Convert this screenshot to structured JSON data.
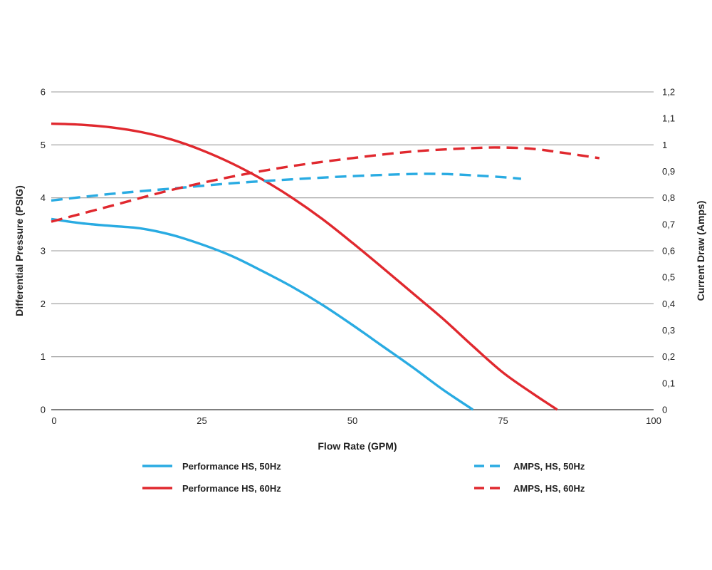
{
  "chart_data": {
    "type": "line",
    "xlabel": "Flow Rate (GPM)",
    "ylabel": "Differential Pressure (PSIG)",
    "y2label": "Current Draw (Amps)",
    "xlim": [
      0,
      100
    ],
    "ylim": [
      0,
      6
    ],
    "y2lim": [
      0,
      1.2
    ],
    "x_ticks": [
      "0",
      "25",
      "50",
      "75",
      "100"
    ],
    "y_ticks": [
      "0",
      "1",
      "2",
      "3",
      "4",
      "5",
      "6"
    ],
    "y2_ticks": [
      "0",
      "0,1",
      "0,2",
      "0,3",
      "0,4",
      "0,5",
      "0,6",
      "0,7",
      "0,8",
      "0,9",
      "1",
      "1,1",
      "1,2"
    ],
    "grid": "horizontal",
    "legend_position": "bottom",
    "colors": {
      "blue": "#29ABE2",
      "red": "#E0282E",
      "grid": "#9a9a9a"
    },
    "series": [
      {
        "name": "Performance HS, 50Hz",
        "axis": "left",
        "style": "solid",
        "color": "#29ABE2",
        "x": [
          0,
          5,
          10,
          15,
          20,
          25,
          30,
          35,
          40,
          45,
          50,
          55,
          60,
          65,
          70
        ],
        "y": [
          3.6,
          3.52,
          3.47,
          3.42,
          3.3,
          3.12,
          2.9,
          2.62,
          2.32,
          1.98,
          1.6,
          1.2,
          0.8,
          0.38,
          0
        ]
      },
      {
        "name": "Performance HS, 60Hz",
        "axis": "left",
        "style": "solid",
        "color": "#E0282E",
        "x": [
          0,
          5,
          10,
          15,
          20,
          25,
          30,
          35,
          40,
          45,
          50,
          55,
          60,
          65,
          70,
          75,
          80,
          84
        ],
        "y": [
          5.4,
          5.38,
          5.33,
          5.24,
          5.1,
          4.9,
          4.65,
          4.35,
          4.0,
          3.6,
          3.15,
          2.68,
          2.2,
          1.72,
          1.2,
          0.7,
          0.3,
          0
        ]
      },
      {
        "name": "AMPS, HS, 50Hz",
        "axis": "right",
        "style": "dashed",
        "color": "#29ABE2",
        "x": [
          0,
          10,
          20,
          30,
          40,
          50,
          60,
          65,
          70,
          75,
          78
        ],
        "y": [
          0.79,
          0.815,
          0.835,
          0.855,
          0.87,
          0.882,
          0.89,
          0.89,
          0.885,
          0.878,
          0.872
        ]
      },
      {
        "name": "AMPS, HS, 60Hz",
        "axis": "right",
        "style": "dashed",
        "color": "#E0282E",
        "x": [
          0,
          10,
          20,
          30,
          40,
          50,
          60,
          70,
          75,
          80,
          85,
          91
        ],
        "y": [
          0.71,
          0.77,
          0.83,
          0.88,
          0.92,
          0.95,
          0.975,
          0.988,
          0.99,
          0.985,
          0.97,
          0.95
        ]
      }
    ]
  }
}
